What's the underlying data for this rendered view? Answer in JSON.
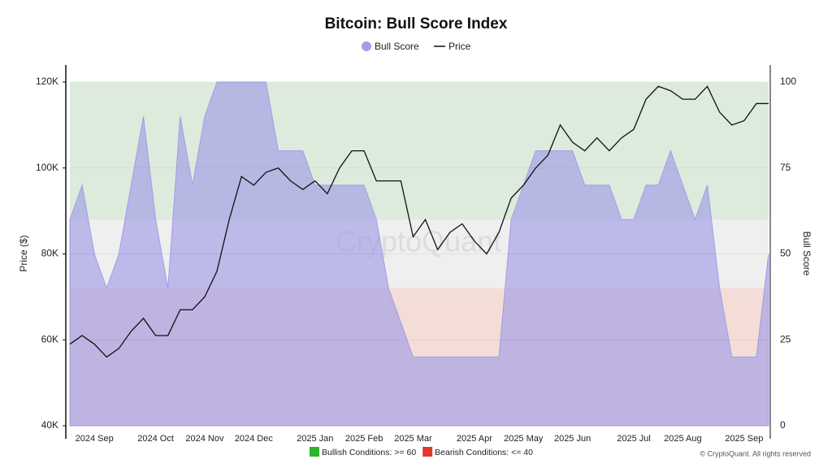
{
  "chart_data": {
    "type": "area-line",
    "title": "Bitcoin: Bull Score Index",
    "ylabel": "Price ($)",
    "y2label": "Bull Score",
    "watermark": "CryptoQuant",
    "credit": "© CryptoQuant. All rights reserved",
    "categories": [
      null,
      null,
      "2024 Sep",
      null,
      null,
      null,
      null,
      "2024 Oct",
      null,
      null,
      null,
      "2024 Nov",
      null,
      null,
      null,
      "2024 Dec",
      null,
      null,
      null,
      null,
      "2025 Jan",
      null,
      null,
      null,
      "2025 Feb",
      null,
      null,
      null,
      "2025 Mar",
      null,
      null,
      null,
      null,
      "2025 Apr",
      null,
      null,
      null,
      "2025 May",
      null,
      null,
      null,
      "2025 Jun",
      null,
      null,
      null,
      null,
      "2025 Jul",
      null,
      null,
      null,
      "2025 Aug",
      null,
      null,
      null,
      null,
      "2025 Sep",
      null,
      null
    ],
    "series": [
      {
        "name": "Bull Score",
        "color": "#a19de6",
        "axis": "y2",
        "values": [
          60,
          70,
          50,
          40,
          50,
          70,
          90,
          60,
          40,
          90,
          70,
          90,
          100,
          100,
          100,
          100,
          100,
          80,
          80,
          80,
          70,
          70,
          70,
          70,
          70,
          60,
          40,
          30,
          20,
          20,
          20,
          20,
          20,
          20,
          20,
          20,
          60,
          70,
          80,
          80,
          80,
          80,
          70,
          70,
          70,
          60,
          60,
          70,
          70,
          80,
          70,
          60,
          70,
          40,
          20,
          20,
          20,
          50
        ]
      },
      {
        "name": "Price",
        "color": "#111111",
        "values": [
          59000,
          61000,
          59000,
          56000,
          58000,
          62000,
          65000,
          61000,
          61000,
          67000,
          67000,
          70000,
          76000,
          88000,
          98000,
          96000,
          99000,
          100000,
          97000,
          95000,
          97000,
          94000,
          100000,
          104000,
          104000,
          97000,
          97000,
          97000,
          84000,
          88000,
          81000,
          85000,
          87000,
          83000,
          80000,
          85000,
          93000,
          96000,
          100000,
          103000,
          110000,
          106000,
          104000,
          107000,
          104000,
          107000,
          109000,
          116000,
          119000,
          118000,
          116000,
          116000,
          119000,
          113000,
          110000,
          111000,
          115000,
          115000
        ]
      }
    ],
    "ylim": [
      40000,
      120000
    ],
    "yticks": [
      {
        "value": 40000,
        "label": "40K"
      },
      {
        "value": 60000,
        "label": "60K"
      },
      {
        "value": 80000,
        "label": "80K"
      },
      {
        "value": 100000,
        "label": "100K"
      },
      {
        "value": 120000,
        "label": "120K"
      }
    ],
    "y2lim": [
      0,
      100
    ],
    "y2ticks": [
      0,
      25,
      50,
      75,
      100
    ],
    "zones": [
      {
        "label": "Bullish Conditions: >= 60",
        "from": 60,
        "to": 100,
        "color": "#2ab52a",
        "fill": "#dcebdc"
      },
      {
        "label": "Bearish Conditions: <= 40",
        "from": 0,
        "to": 40,
        "color": "#e03a2a",
        "fill": "#f3ddd6"
      }
    ]
  }
}
